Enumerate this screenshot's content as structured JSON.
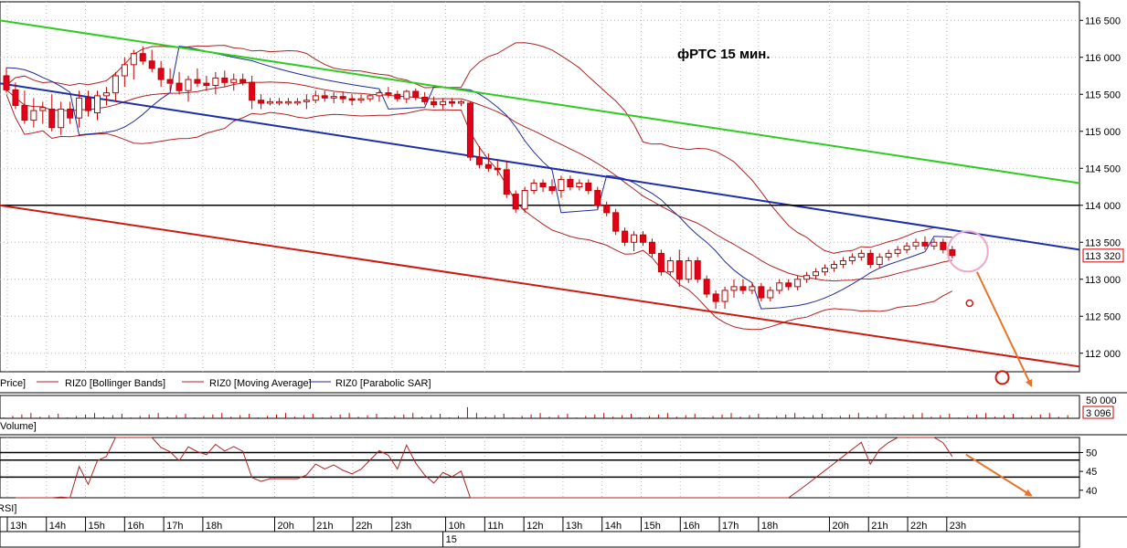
{
  "chart_data": {
    "type": "candlestick",
    "title": "фРТС   15 мин.",
    "colors": {
      "candle_up": "#ffffff",
      "candle_down": "#e3001b",
      "candle_outline": "#c00000",
      "bollinger": "#b22222",
      "moving_average": "#b22222",
      "parabolic_sar": "#1f2a9c",
      "trend_green": "#2ecc1f",
      "trend_blue": "#1c2fa8",
      "trend_red": "#cc1a12",
      "level_black": "#000000",
      "arrow_orange": "#e8742a",
      "highlight_pink": "#f0a8c8",
      "last_price_box": "#cc0000"
    },
    "price_axis": {
      "ticks": [
        "116 500",
        "116 000",
        "115 500",
        "115 000",
        "114 500",
        "114 000",
        "113 500",
        "113 000",
        "112 500",
        "112 000"
      ],
      "tick_values": [
        116500,
        116000,
        115500,
        115000,
        114500,
        114000,
        113500,
        113000,
        112500,
        112000
      ],
      "ylim": [
        111750,
        116750
      ],
      "last_price_label": "113 320",
      "last_price": 113320
    },
    "legend": [
      {
        "label": "Price]"
      },
      {
        "label": "RIZ0 [Bollinger Bands]"
      },
      {
        "label": "RIZ0 [Moving Average]"
      },
      {
        "label": "RIZ0 [Parabolic SAR]"
      }
    ],
    "volume": {
      "label": "Volume]",
      "ticks": [
        "50 000"
      ],
      "last_label": "3 096"
    },
    "rsi": {
      "label": "RSI]",
      "ticks": [
        "50",
        "45",
        "40"
      ],
      "tick_values": [
        50,
        45,
        40
      ],
      "levels": [
        50,
        48,
        43.5
      ],
      "ylim": [
        38,
        54
      ]
    },
    "time_axis": {
      "hours": [
        "13h",
        "14h",
        "15h",
        "16h",
        "17h",
        "18h",
        "20h",
        "21h",
        "22h",
        "23h",
        "10h",
        "11h",
        "12h",
        "13h",
        "14h",
        "15h",
        "16h",
        "17h",
        "18h",
        "20h",
        "21h",
        "22h",
        "23h"
      ],
      "hour_index": [
        0.5,
        4.8,
        9.1,
        13.4,
        17.7,
        22.0,
        29.9,
        34.2,
        38.5,
        42.8,
        48.7,
        53.0,
        57.3,
        61.6,
        65.9,
        70.2,
        74.5,
        78.8,
        83.1,
        90.9,
        95.2,
        99.5,
        103.8
      ],
      "day_label": "15",
      "day_index": 48.4
    },
    "candles": [
      [
        115750,
        115860,
        115520,
        115560
      ],
      [
        115560,
        115660,
        115300,
        115350
      ],
      [
        115350,
        115550,
        115100,
        115150
      ],
      [
        115150,
        115450,
        115050,
        115280
      ],
      [
        115280,
        115400,
        115100,
        115320
      ],
      [
        115300,
        115500,
        115000,
        115050
      ],
      [
        115050,
        115400,
        114950,
        115300
      ],
      [
        115300,
        115400,
        115100,
        115180
      ],
      [
        115180,
        115550,
        115050,
        115450
      ],
      [
        115450,
        115550,
        115200,
        115280
      ],
      [
        115250,
        115550,
        115150,
        115480
      ],
      [
        115480,
        115600,
        115350,
        115520
      ],
      [
        115520,
        115800,
        115400,
        115750
      ],
      [
        115750,
        116000,
        115600,
        115900
      ],
      [
        115900,
        116100,
        115700,
        116050
      ],
      [
        116050,
        116150,
        115900,
        115950
      ],
      [
        115950,
        116100,
        115800,
        115850
      ],
      [
        115850,
        115950,
        115600,
        115700
      ],
      [
        115700,
        115850,
        115550,
        115650
      ],
      [
        115650,
        115800,
        115500,
        115550
      ],
      [
        115550,
        115750,
        115400,
        115700
      ],
      [
        115700,
        115850,
        115600,
        115650
      ],
      [
        115650,
        115750,
        115550,
        115620
      ],
      [
        115620,
        115800,
        115500,
        115720
      ],
      [
        115720,
        115820,
        115600,
        115660
      ],
      [
        115660,
        115780,
        115550,
        115700
      ],
      [
        115700,
        115780,
        115620,
        115660
      ],
      [
        115660,
        115750,
        115300,
        115420
      ],
      [
        115420,
        115500,
        115300,
        115380
      ],
      [
        115380,
        115450,
        115350,
        115400
      ],
      [
        115400,
        115450,
        115350,
        115400
      ],
      [
        115400,
        115450,
        115350,
        115400
      ],
      [
        115400,
        115450,
        115350,
        115400
      ],
      [
        115400,
        115500,
        115300,
        115420
      ],
      [
        115420,
        115550,
        115380,
        115480
      ],
      [
        115480,
        115550,
        115400,
        115450
      ],
      [
        115450,
        115530,
        115380,
        115470
      ],
      [
        115470,
        115540,
        115380,
        115440
      ],
      [
        115440,
        115500,
        115350,
        115420
      ],
      [
        115420,
        115500,
        115380,
        115440
      ],
      [
        115440,
        115500,
        115400,
        115480
      ],
      [
        115480,
        115550,
        115400,
        115520
      ],
      [
        115520,
        115600,
        115450,
        115500
      ],
      [
        115500,
        115550,
        115400,
        115440
      ],
      [
        115440,
        115560,
        115380,
        115540
      ],
      [
        115540,
        115580,
        115420,
        115460
      ],
      [
        115460,
        115530,
        115360,
        115400
      ],
      [
        115400,
        115470,
        115320,
        115360
      ],
      [
        115360,
        115450,
        115300,
        115400
      ],
      [
        115400,
        115450,
        115330,
        115380
      ],
      [
        115380,
        115420,
        115340,
        115400
      ],
      [
        115380,
        115400,
        114600,
        114650
      ],
      [
        114650,
        114800,
        114500,
        114550
      ],
      [
        114550,
        114700,
        114450,
        114500
      ],
      [
        114500,
        114600,
        114400,
        114480
      ],
      [
        114480,
        114600,
        114100,
        114150
      ],
      [
        114150,
        114200,
        113900,
        113950
      ],
      [
        113950,
        114250,
        113900,
        114200
      ],
      [
        114200,
        114350,
        114150,
        114300
      ],
      [
        114300,
        114350,
        114180,
        114250
      ],
      [
        114250,
        114350,
        114150,
        114200
      ],
      [
        114200,
        114400,
        114100,
        114350
      ],
      [
        114350,
        114400,
        114200,
        114250
      ],
      [
        114250,
        114350,
        114200,
        114300
      ],
      [
        114300,
        114350,
        114150,
        114200
      ],
      [
        114200,
        114250,
        113950,
        114000
      ],
      [
        114000,
        114050,
        113850,
        113900
      ],
      [
        113900,
        113950,
        113600,
        113650
      ],
      [
        113650,
        113700,
        113450,
        113500
      ],
      [
        113500,
        113650,
        113380,
        113600
      ],
      [
        113600,
        113650,
        113450,
        113500
      ],
      [
        113500,
        113550,
        113300,
        113350
      ],
      [
        113350,
        113400,
        113050,
        113100
      ],
      [
        113100,
        113300,
        113050,
        113250
      ],
      [
        113250,
        113400,
        112900,
        113000
      ],
      [
        113000,
        113300,
        112950,
        113250
      ],
      [
        113250,
        113300,
        112950,
        113000
      ],
      [
        113000,
        113050,
        112750,
        112800
      ],
      [
        112800,
        112850,
        112600,
        112700
      ],
      [
        112700,
        112900,
        112600,
        112850
      ],
      [
        112850,
        113000,
        112750,
        112900
      ],
      [
        112900,
        113000,
        112800,
        112850
      ],
      [
        112850,
        112950,
        112800,
        112900
      ],
      [
        112900,
        112950,
        112700,
        112750
      ],
      [
        112750,
        112900,
        112700,
        112850
      ],
      [
        112850,
        113000,
        112800,
        112950
      ],
      [
        112950,
        113000,
        112850,
        112900
      ],
      [
        112900,
        113050,
        112850,
        113000
      ],
      [
        113000,
        113100,
        112950,
        113050
      ],
      [
        113050,
        113150,
        113000,
        113100
      ],
      [
        113100,
        113200,
        113050,
        113150
      ],
      [
        113150,
        113250,
        113100,
        113200
      ],
      [
        113200,
        113300,
        113150,
        113250
      ],
      [
        113250,
        113350,
        113200,
        113300
      ],
      [
        113300,
        113400,
        113250,
        113350
      ],
      [
        113350,
        113400,
        113150,
        113200
      ],
      [
        113200,
        113350,
        113150,
        113300
      ],
      [
        113300,
        113400,
        113250,
        113350
      ],
      [
        113350,
        113450,
        113300,
        113400
      ],
      [
        113400,
        113500,
        113350,
        113450
      ],
      [
        113450,
        113550,
        113400,
        113500
      ],
      [
        113500,
        113580,
        113400,
        113450
      ],
      [
        113450,
        113550,
        113400,
        113500
      ],
      [
        113500,
        113550,
        113350,
        113400
      ],
      [
        113400,
        113450,
        113280,
        113320
      ]
    ],
    "trendlines": [
      {
        "color": "green",
        "start": [
          -0.8,
          116500
        ],
        "end": [
          135.5,
          114300
        ]
      },
      {
        "color": "blue",
        "start": [
          -0.8,
          115650
        ],
        "end": [
          135.5,
          113400
        ]
      },
      {
        "color": "black",
        "start": [
          -0.8,
          114000
        ],
        "end": [
          135.5,
          114000
        ]
      },
      {
        "color": "red",
        "start": [
          -0.8,
          114000
        ],
        "end": [
          135.5,
          111820
        ]
      }
    ],
    "projection_arrows": [
      {
        "panel": "price",
        "start": [
          104.5,
          113200
        ],
        "end": [
          109.3,
          111850
        ]
      },
      {
        "panel": "rsi",
        "start": [
          104.5,
          49.5
        ],
        "end": [
          109.3,
          40
        ]
      }
    ],
    "target_marker": [
      109.3,
      111820
    ],
    "small_marker": [
      104.5,
      112800
    ],
    "highlight_circle": [
      104.5,
      113450
    ]
  }
}
